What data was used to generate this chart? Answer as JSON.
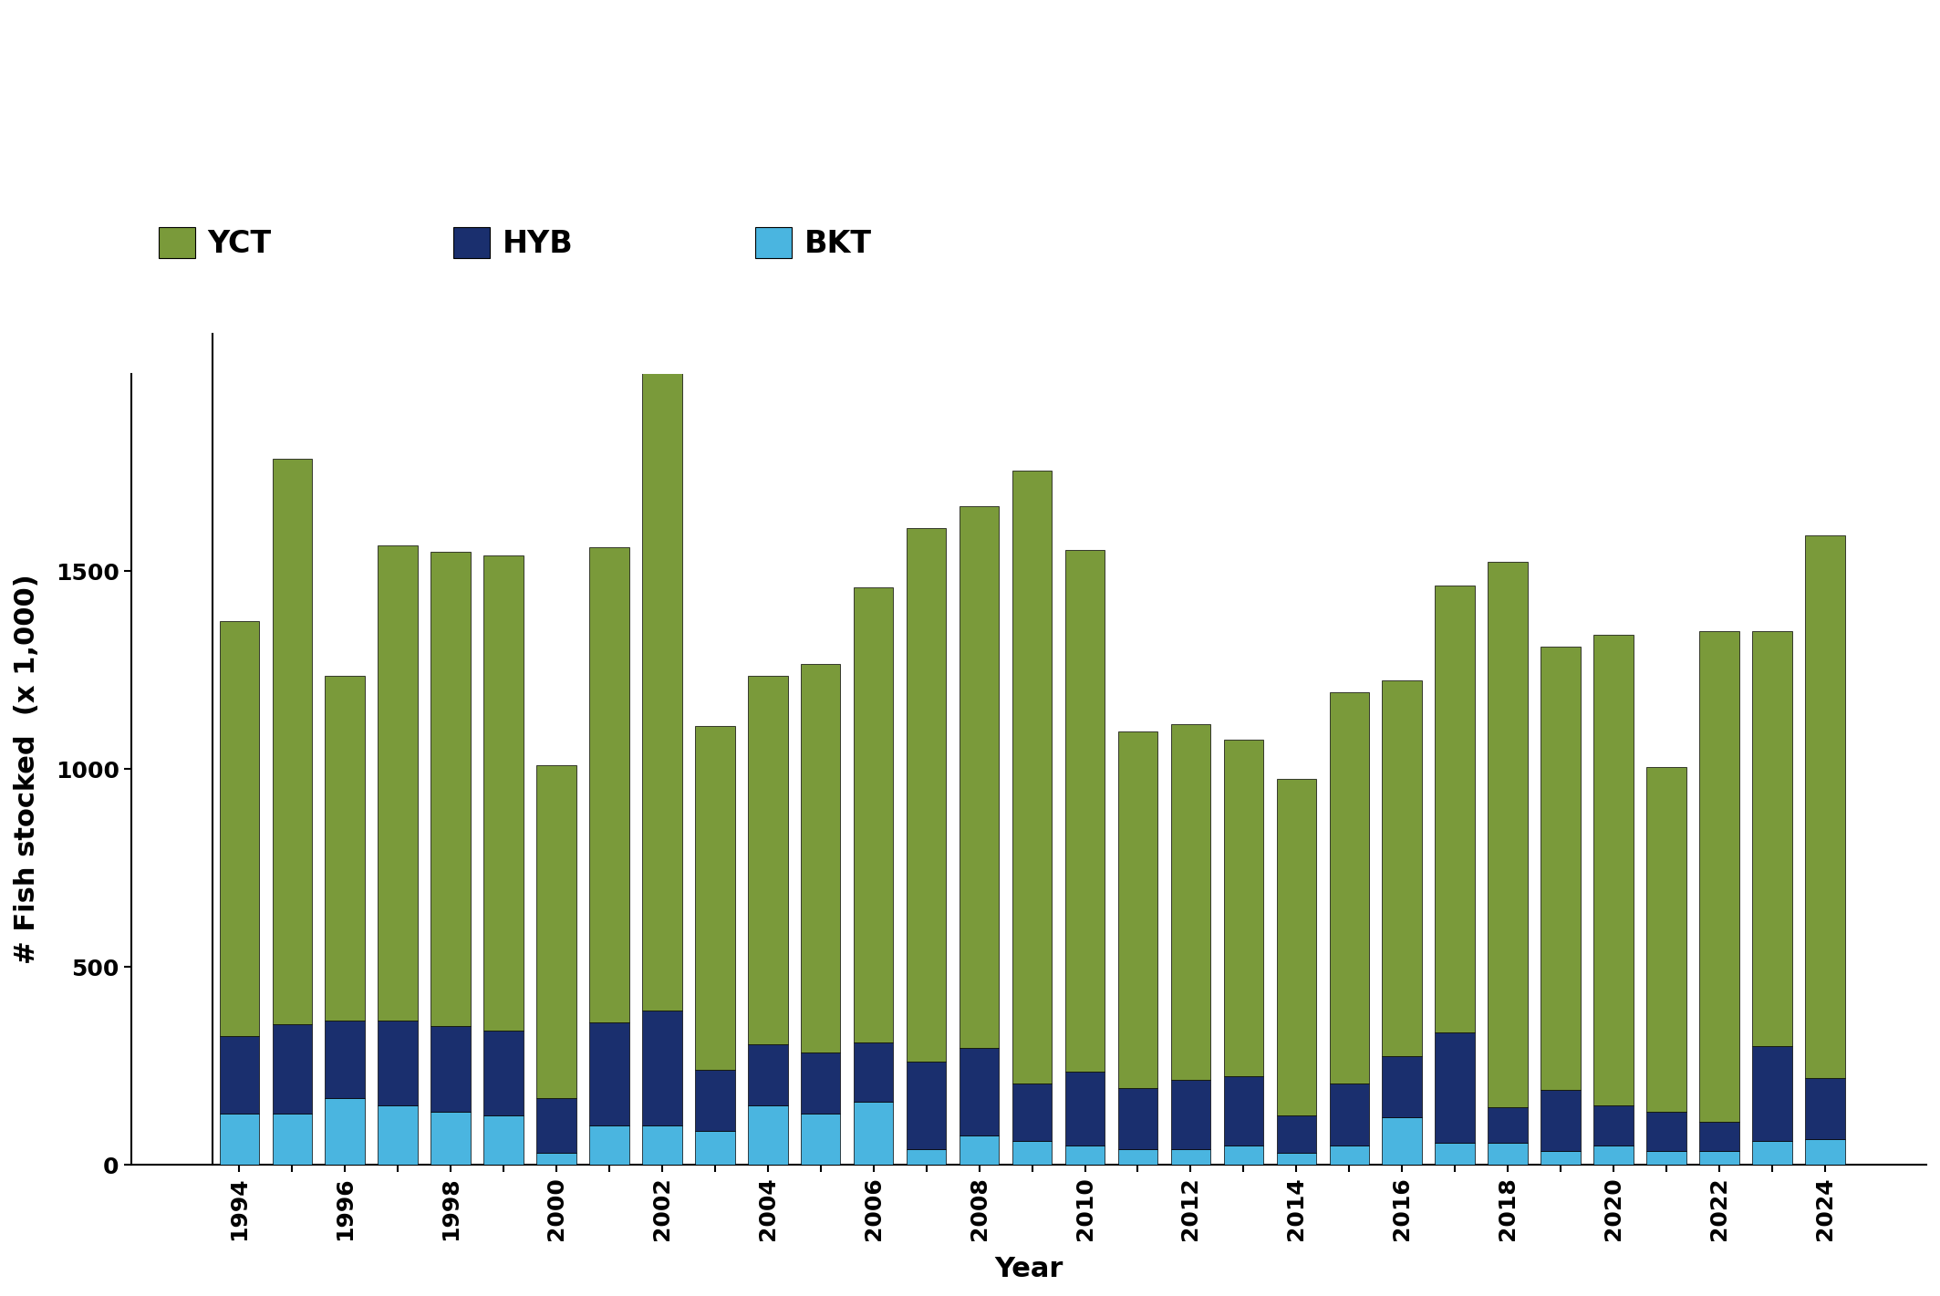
{
  "years": [
    1994,
    1995,
    1996,
    1997,
    1998,
    1999,
    2000,
    2001,
    2002,
    2003,
    2004,
    2005,
    2006,
    2007,
    2008,
    2009,
    2010,
    2011,
    2012,
    2013,
    2014,
    2015,
    2016,
    2017,
    2018,
    2019,
    2020,
    2021,
    2022,
    2023,
    2024
  ],
  "YCT": [
    1050,
    1430,
    870,
    1200,
    1200,
    1200,
    840,
    1200,
    1870,
    870,
    930,
    980,
    1150,
    1350,
    1370,
    1550,
    1320,
    900,
    900,
    850,
    850,
    990,
    950,
    1130,
    1380,
    1120,
    1190,
    870,
    1240,
    1050,
    1370
  ],
  "HYB": [
    195,
    225,
    195,
    215,
    215,
    215,
    140,
    260,
    290,
    155,
    155,
    155,
    150,
    220,
    220,
    145,
    185,
    155,
    175,
    175,
    95,
    155,
    155,
    280,
    90,
    155,
    100,
    100,
    75,
    240,
    155
  ],
  "BKT": [
    130,
    130,
    170,
    150,
    135,
    125,
    30,
    100,
    100,
    85,
    150,
    130,
    160,
    40,
    75,
    60,
    50,
    40,
    40,
    50,
    30,
    50,
    120,
    55,
    55,
    35,
    50,
    35,
    35,
    60,
    65
  ],
  "YCT_color": "#7a9a3a",
  "HYB_color": "#1a2f6e",
  "BKT_color": "#4ab5e0",
  "ylim": [
    0,
    2000
  ],
  "ylabel": "# Fish stocked  (x 1,000)",
  "xlabel": "Year",
  "yticks": [
    0,
    500,
    1000,
    1500
  ],
  "axis_fontsize": 22,
  "tick_fontsize": 18,
  "legend_fontsize": 24,
  "bar_width": 0.75,
  "background_color": "#ffffff"
}
